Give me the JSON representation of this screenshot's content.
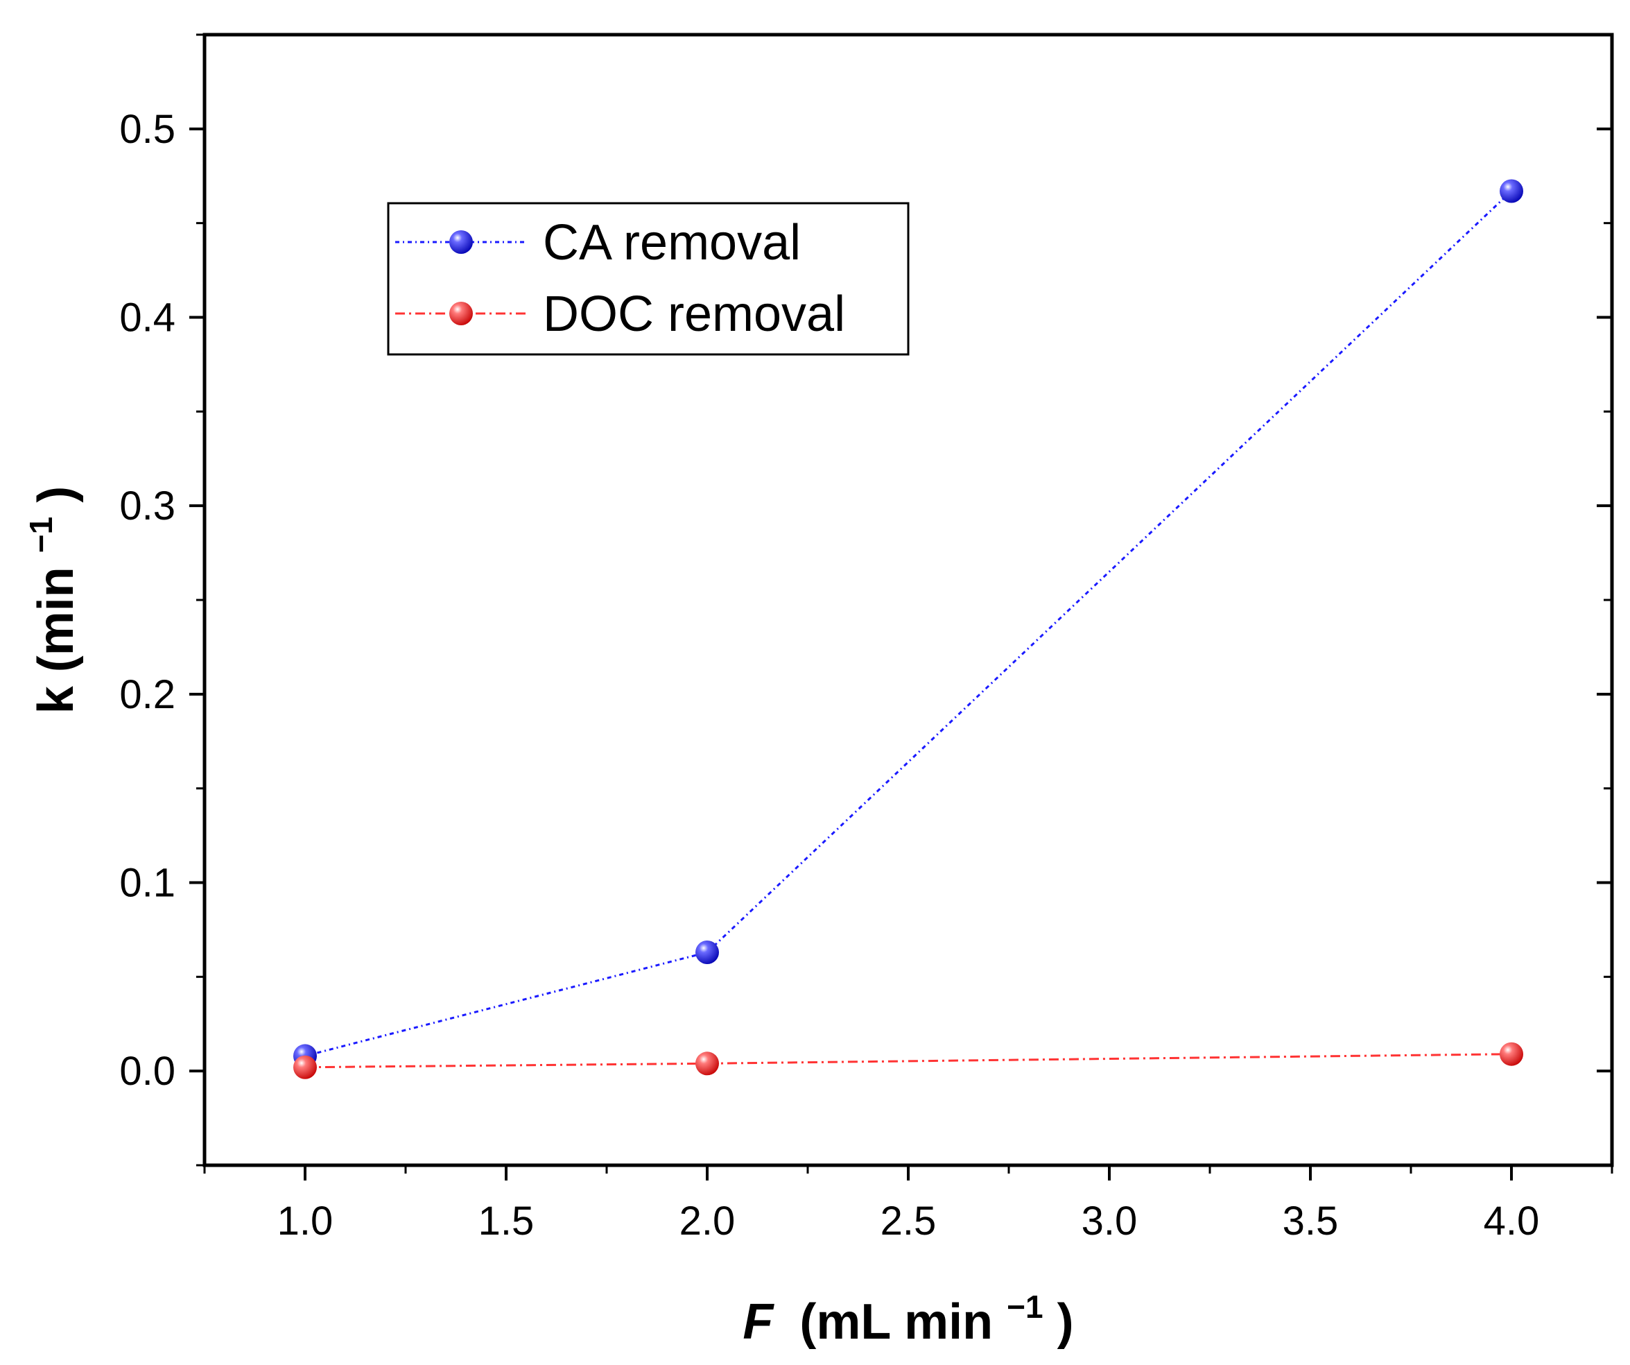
{
  "chart_data": {
    "type": "line",
    "title": "",
    "xlabel": {
      "italic": "F",
      "rest": "(mL min",
      "sup": "−1",
      "close": ")"
    },
    "ylabel": {
      "main": "k (min",
      "sup": "−1",
      "close": ")"
    },
    "xlim": [
      0.75,
      4.25
    ],
    "ylim": [
      -0.05,
      0.55
    ],
    "xticks": [
      1.0,
      1.5,
      2.0,
      2.5,
      3.0,
      3.5,
      4.0
    ],
    "xtick_labels": [
      "1.0",
      "1.5",
      "2.0",
      "2.5",
      "3.0",
      "3.5",
      "4.0"
    ],
    "yticks": [
      0.0,
      0.1,
      0.2,
      0.3,
      0.4,
      0.5
    ],
    "ytick_labels": [
      "0.0",
      "0.1",
      "0.2",
      "0.3",
      "0.4",
      "0.5"
    ],
    "grid": false,
    "legend_position": "top-left",
    "series": [
      {
        "name": "CA removal",
        "color": "#1a1aff",
        "x": [
          1.0,
          2.0,
          4.0
        ],
        "y": [
          0.008,
          0.063,
          0.467
        ]
      },
      {
        "name": "DOC removal",
        "color": "#ff3333",
        "x": [
          1.0,
          2.0,
          4.0
        ],
        "y": [
          0.002,
          0.004,
          0.009
        ]
      }
    ]
  }
}
